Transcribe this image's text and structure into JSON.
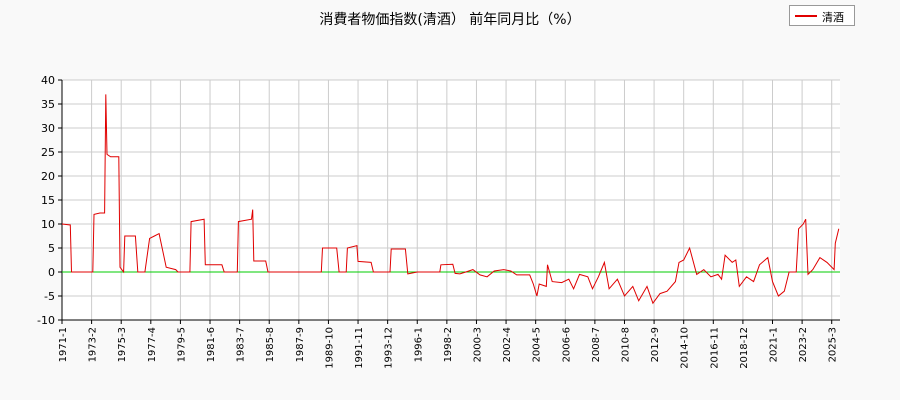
{
  "chart_data": {
    "type": "line",
    "title": "消費者物価指数(清酒） 前年同月比（%）",
    "xlabel": "",
    "ylabel": "",
    "ylim": [
      -10,
      40
    ],
    "yticks": [
      -10,
      -5,
      0,
      5,
      10,
      15,
      20,
      25,
      30,
      35,
      40
    ],
    "xticks": [
      "1971-1",
      "1973-2",
      "1975-3",
      "1977-4",
      "1979-5",
      "1981-6",
      "1983-7",
      "1985-8",
      "1987-9",
      "1989-10",
      "1991-11",
      "1993-12",
      "1996-1",
      "1998-2",
      "2000-3",
      "2002-4",
      "2004-5",
      "2006-6",
      "2008-7",
      "2010-8",
      "2012-9",
      "2014-10",
      "2016-11",
      "2018-12",
      "2021-1",
      "2023-2",
      "2025-3"
    ],
    "grid": true,
    "legend_position": "top-right",
    "reference_line": {
      "y": 0,
      "color": "#00cc00"
    },
    "series": [
      {
        "name": "清酒",
        "color": "#e00000",
        "points": [
          [
            "1971-01",
            10
          ],
          [
            "1971-08",
            9.8
          ],
          [
            "1971-09",
            0
          ],
          [
            "1973-03",
            0
          ],
          [
            "1973-04",
            12
          ],
          [
            "1973-09",
            12.3
          ],
          [
            "1974-01",
            12.3
          ],
          [
            "1974-02",
            37
          ],
          [
            "1974-03",
            24.5
          ],
          [
            "1974-06",
            24
          ],
          [
            "1975-01",
            24
          ],
          [
            "1975-02",
            1
          ],
          [
            "1975-05",
            0
          ],
          [
            "1975-06",
            7.5
          ],
          [
            "1976-03",
            7.5
          ],
          [
            "1976-05",
            0
          ],
          [
            "1976-11",
            0
          ],
          [
            "1977-03",
            7
          ],
          [
            "1977-07",
            7.5
          ],
          [
            "1977-11",
            8
          ],
          [
            "1978-05",
            1
          ],
          [
            "1979-01",
            0.5
          ],
          [
            "1979-03",
            0
          ],
          [
            "1980-01",
            0
          ],
          [
            "1980-02",
            10.5
          ],
          [
            "1981-01",
            11
          ],
          [
            "1981-02",
            1.5
          ],
          [
            "1982-04",
            1.5
          ],
          [
            "1982-06",
            0
          ],
          [
            "1983-05",
            0
          ],
          [
            "1983-06",
            10.5
          ],
          [
            "1984-05",
            11
          ],
          [
            "1984-06",
            13
          ],
          [
            "1984-07",
            2.3
          ],
          [
            "1985-05",
            2.3
          ],
          [
            "1985-07",
            0
          ],
          [
            "1989-04",
            0
          ],
          [
            "1989-05",
            5
          ],
          [
            "1990-05",
            5
          ],
          [
            "1990-07",
            0
          ],
          [
            "1991-01",
            0
          ],
          [
            "1991-02",
            5
          ],
          [
            "1991-10",
            5.5
          ],
          [
            "1991-11",
            2.2
          ],
          [
            "1992-10",
            2
          ],
          [
            "1992-12",
            0
          ],
          [
            "1994-02",
            0
          ],
          [
            "1994-03",
            4.8
          ],
          [
            "1995-03",
            4.8
          ],
          [
            "1995-05",
            -0.4
          ],
          [
            "1996-01",
            0
          ],
          [
            "1997-08",
            0
          ],
          [
            "1997-09",
            1.5
          ],
          [
            "1998-07",
            1.6
          ],
          [
            "1998-09",
            -0.3
          ],
          [
            "1999-01",
            -0.4
          ],
          [
            "1999-06",
            0
          ],
          [
            "1999-12",
            0.5
          ],
          [
            "2000-06",
            -0.6
          ],
          [
            "2000-12",
            -1
          ],
          [
            "2001-06",
            0.2
          ],
          [
            "2002-02",
            0.5
          ],
          [
            "2002-08",
            0.2
          ],
          [
            "2003-01",
            -0.6
          ],
          [
            "2003-12",
            -0.6
          ],
          [
            "2004-03",
            -2.5
          ],
          [
            "2004-06",
            -5
          ],
          [
            "2004-08",
            -2.5
          ],
          [
            "2005-02",
            -3
          ],
          [
            "2005-03",
            1.5
          ],
          [
            "2005-07",
            -2
          ],
          [
            "2006-03",
            -2.2
          ],
          [
            "2006-09",
            -1.5
          ],
          [
            "2007-01",
            -3.5
          ],
          [
            "2007-06",
            -0.5
          ],
          [
            "2008-01",
            -1
          ],
          [
            "2008-05",
            -3.5
          ],
          [
            "2008-10",
            -1
          ],
          [
            "2009-03",
            2
          ],
          [
            "2009-07",
            -3.5
          ],
          [
            "2010-02",
            -1.5
          ],
          [
            "2010-08",
            -5
          ],
          [
            "2011-03",
            -3
          ],
          [
            "2011-08",
            -6
          ],
          [
            "2012-03",
            -3
          ],
          [
            "2012-08",
            -6.5
          ],
          [
            "2013-02",
            -4.5
          ],
          [
            "2013-08",
            -4
          ],
          [
            "2014-03",
            -2
          ],
          [
            "2014-06",
            2
          ],
          [
            "2014-10",
            2.5
          ],
          [
            "2015-03",
            5
          ],
          [
            "2015-09",
            -0.5
          ],
          [
            "2016-03",
            0.5
          ],
          [
            "2016-09",
            -1
          ],
          [
            "2017-03",
            -0.5
          ],
          [
            "2017-06",
            -1.5
          ],
          [
            "2017-09",
            3.5
          ],
          [
            "2018-03",
            2
          ],
          [
            "2018-06",
            2.5
          ],
          [
            "2018-09",
            -3
          ],
          [
            "2019-03",
            -1
          ],
          [
            "2019-09",
            -2
          ],
          [
            "2020-02",
            1.5
          ],
          [
            "2020-09",
            3
          ],
          [
            "2021-01",
            -2
          ],
          [
            "2021-06",
            -5
          ],
          [
            "2021-11",
            -4
          ],
          [
            "2022-03",
            0
          ],
          [
            "2022-09",
            0
          ],
          [
            "2022-11",
            9
          ],
          [
            "2023-03",
            10
          ],
          [
            "2023-05",
            11
          ],
          [
            "2023-07",
            -0.5
          ],
          [
            "2023-11",
            0.5
          ],
          [
            "2024-05",
            3
          ],
          [
            "2024-11",
            2
          ],
          [
            "2025-05",
            0.5
          ],
          [
            "2025-06",
            6
          ],
          [
            "2025-09",
            9
          ]
        ]
      }
    ]
  }
}
